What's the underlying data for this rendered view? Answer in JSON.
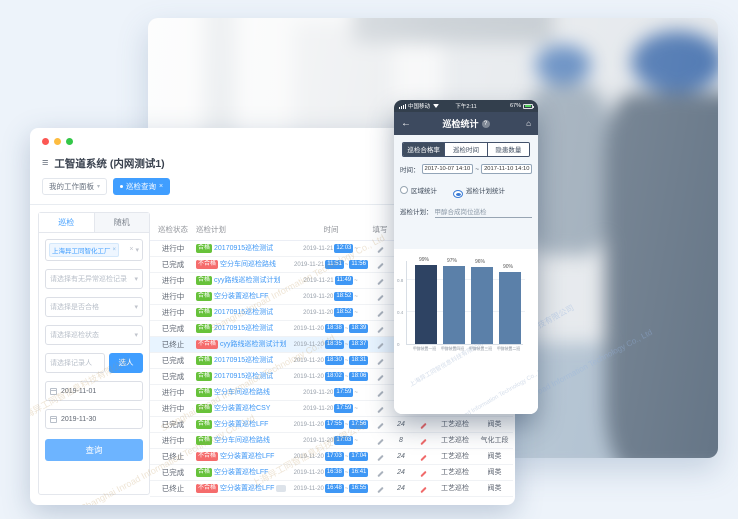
{
  "watermark": {
    "cn": "上海异工同智信息科技有限公司",
    "en": "Shanghai Inroad Information Technology Co., Ltd"
  },
  "desktop": {
    "menu_icon": "≡",
    "window_title": "工智道系统 (内网测试1)",
    "workspace_tab": "我的工作面板",
    "active_tab": "巡检查询",
    "panel": {
      "tabs": [
        {
          "label": "巡检",
          "active": true
        },
        {
          "label": "随机",
          "active": false
        }
      ],
      "factory_chip": "上海异工同智化工厂",
      "selects": [
        {
          "placeholder": "请选择有无异常巡检记录"
        },
        {
          "placeholder": "请选择是否合格"
        },
        {
          "placeholder": "请选择巡检状态"
        }
      ],
      "recorder_placeholder": "请选择记录人",
      "choose_person_button": "选人",
      "date_from": "2019-11-01",
      "date_to": "2019-11-30",
      "search_button": "查询"
    },
    "table": {
      "headers": [
        "巡检状态",
        "巡检计划",
        "时间",
        "填写",
        "",
        "",
        "",
        ""
      ],
      "time_separator": "~",
      "rows": [
        {
          "status": "进行中",
          "grade": "合格",
          "fail": false,
          "plan": "20170915巡检测试",
          "date": "2019-11-21",
          "start": "12:03",
          "end": "",
          "count": "",
          "type": "",
          "category": "",
          "highlight": false
        },
        {
          "status": "已完成",
          "grade": "不合格",
          "fail": true,
          "plan": "空分车间巡检路线",
          "date": "2019-11-21",
          "start": "11:51",
          "end": "11:56",
          "count": "",
          "type": "",
          "category": "",
          "highlight": false
        },
        {
          "status": "进行中",
          "grade": "合格",
          "fail": false,
          "plan": "cyy路线巡检测试计划",
          "date": "2019-11-21",
          "start": "11:49",
          "end": "",
          "count": "",
          "type": "",
          "category": "",
          "highlight": false
        },
        {
          "status": "进行中",
          "grade": "合格",
          "fail": false,
          "plan": "空分装置巡检LFF",
          "date": "2019-11-20",
          "start": "18:52",
          "end": "",
          "count": "",
          "type": "",
          "category": "",
          "highlight": false
        },
        {
          "status": "进行中",
          "grade": "合格",
          "fail": false,
          "plan": "20170915巡检测试",
          "date": "2019-11-20",
          "start": "18:52",
          "end": "",
          "count": "",
          "type": "",
          "category": "",
          "highlight": false
        },
        {
          "status": "已完成",
          "grade": "合格",
          "fail": false,
          "plan": "20170915巡检测试",
          "date": "2019-11-20",
          "start": "18:38",
          "end": "18:39",
          "count": "",
          "type": "",
          "category": "",
          "highlight": false
        },
        {
          "status": "已终止",
          "grade": "不合格",
          "fail": true,
          "plan": "cyy路线巡检测试计划",
          "date": "2019-11-20",
          "start": "18:35",
          "end": "18:37",
          "count": "",
          "type": "",
          "category": "",
          "highlight": true
        },
        {
          "status": "已完成",
          "grade": "合格",
          "fail": false,
          "plan": "20170915巡检测试",
          "date": "2019-11-20",
          "start": "18:30",
          "end": "18:31",
          "count": "",
          "type": "",
          "category": "",
          "highlight": false
        },
        {
          "status": "已完成",
          "grade": "合格",
          "fail": false,
          "plan": "20170915巡检测试",
          "date": "2019-11-20",
          "start": "18:02",
          "end": "18:06",
          "count": "",
          "type": "",
          "category": "",
          "highlight": false
        },
        {
          "status": "进行中",
          "grade": "合格",
          "fail": false,
          "plan": "空分车间巡检路线",
          "date": "2019-11-20",
          "start": "17:59",
          "end": "",
          "count": "",
          "type": "",
          "category": "",
          "highlight": false
        },
        {
          "status": "进行中",
          "grade": "合格",
          "fail": false,
          "plan": "空分装置巡检CSY",
          "date": "2019-11-20",
          "start": "17:59",
          "end": "",
          "count": "",
          "type": "",
          "category": "",
          "highlight": false
        },
        {
          "status": "已完成",
          "grade": "合格",
          "fail": false,
          "plan": "空分装置巡检LFF",
          "date": "2019-11-20",
          "start": "17:55",
          "end": "17:56",
          "count": "24",
          "type": "工艺巡检",
          "category": "阀类",
          "highlight": false
        },
        {
          "status": "进行中",
          "grade": "合格",
          "fail": false,
          "plan": "空分车间巡检路线",
          "date": "2019-11-20",
          "start": "17:03",
          "end": "",
          "count": "8",
          "type": "工艺巡检",
          "category": "气化工段",
          "highlight": false
        },
        {
          "status": "已终止",
          "grade": "不合格",
          "fail": true,
          "plan": "空分装置巡检LFF",
          "date": "2019-11-20",
          "start": "17:03",
          "end": "17:04",
          "count": "24",
          "type": "工艺巡检",
          "category": "阀类",
          "highlight": false
        },
        {
          "status": "已完成",
          "grade": "合格",
          "fail": false,
          "plan": "空分装置巡检LFF",
          "date": "2019-11-20",
          "start": "16:38",
          "end": "16:41",
          "count": "24",
          "type": "工艺巡检",
          "category": "阀类",
          "highlight": false
        },
        {
          "status": "已终止",
          "grade": "不合格",
          "fail": true,
          "plan": "空分装置巡检LFF",
          "suffix_badge": true,
          "date": "2019-11-20",
          "start": "16:48",
          "end": "16:55",
          "count": "24",
          "type": "工艺巡检",
          "category": "阀类",
          "highlight": false
        }
      ]
    }
  },
  "phone": {
    "status_bar": {
      "carrier": "中国移动",
      "time": "下午2:11",
      "battery": "67%"
    },
    "back_icon": "←",
    "home_icon": "⌂",
    "help_icon": "?",
    "nav_title": "巡检统计",
    "segments": [
      {
        "label": "巡检合格率",
        "active": true
      },
      {
        "label": "巡检时间",
        "active": false
      },
      {
        "label": "隐患数量",
        "active": false
      }
    ],
    "time_label": "时间：",
    "time_from": "2017-10-07 14:10",
    "time_separator": "~",
    "time_to": "2017-11-10 14:10",
    "radios": [
      {
        "label": "区域统计",
        "selected": false
      },
      {
        "label": "巡检计划统计",
        "selected": true
      }
    ],
    "plan_label": "巡检计划：",
    "plan_value": "甲醇合成岗位巡检"
  },
  "chart_data": {
    "type": "bar",
    "title": "巡检合格率",
    "categories": [
      "甲醇装置一班",
      "甲醇装置四班",
      "甲醇装置三班",
      "甲醇装置二班"
    ],
    "values": [
      0.99,
      0.97,
      0.96,
      0.9
    ],
    "bar_labels": [
      "99%",
      "97%",
      "96%",
      "90%"
    ],
    "xlabel": "",
    "ylabel": "",
    "yticks": [
      0.8,
      0.4,
      0
    ],
    "ylim": [
      0,
      1.05
    ],
    "grid": true,
    "legend": false,
    "bar_colors": [
      "#2e4363",
      "#5b80a9",
      "#5b80a9",
      "#5b80a9"
    ]
  },
  "colors": {
    "accent": "#409eff",
    "pass": "#67c23a",
    "fail": "#f56c6c",
    "phone_dark": "#3d4a5f",
    "bar_dark": "#2e4363",
    "bar_light": "#5b80a9"
  }
}
